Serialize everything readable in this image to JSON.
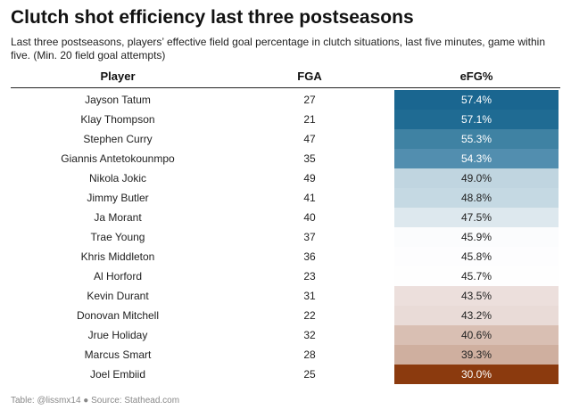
{
  "title": "Clutch shot efficiency last three postseasons",
  "subtitle": "Last three postseasons, players’ effective field goal percentage in clutch situations, last five minutes, game within five. (Min. 20 field goal attempts)",
  "footer": "Table: @lissmx14 ● Source: Stathead.com",
  "colors": {
    "high": "#19668f",
    "mid": "#ffffff",
    "low": "#8b3a0e"
  },
  "chart_data": {
    "type": "table",
    "columns": [
      "Player",
      "FGA",
      "eFG%"
    ],
    "rows": [
      {
        "player": "Jayson Tatum",
        "fga": "27",
        "efg": "57.4%",
        "value": 57.4,
        "bg": "#1a6690",
        "fg": "#ffffff"
      },
      {
        "player": "Klay Thompson",
        "fga": "21",
        "efg": "57.1%",
        "value": 57.1,
        "bg": "#1f6b93",
        "fg": "#ffffff"
      },
      {
        "player": "Stephen Curry",
        "fga": "47",
        "efg": "55.3%",
        "value": 55.3,
        "bg": "#3f82a3",
        "fg": "#ffffff"
      },
      {
        "player": "Giannis Antetokounmpo",
        "fga": "35",
        "efg": "54.3%",
        "value": 54.3,
        "bg": "#528eaf",
        "fg": "#ffffff"
      },
      {
        "player": "Nikola Jokic",
        "fga": "49",
        "efg": "49.0%",
        "value": 49.0,
        "bg": "#c0d5e0",
        "fg": "#222222"
      },
      {
        "player": "Jimmy Butler",
        "fga": "41",
        "efg": "48.8%",
        "value": 48.8,
        "bg": "#c5d9e3",
        "fg": "#222222"
      },
      {
        "player": "Ja Morant",
        "fga": "40",
        "efg": "47.5%",
        "value": 47.5,
        "bg": "#dde8ee",
        "fg": "#222222"
      },
      {
        "player": "Trae Young",
        "fga": "37",
        "efg": "45.9%",
        "value": 45.9,
        "bg": "#fbfcfd",
        "fg": "#222222"
      },
      {
        "player": "Khris Middleton",
        "fga": "36",
        "efg": "45.8%",
        "value": 45.8,
        "bg": "#fdfdfe",
        "fg": "#222222"
      },
      {
        "player": "Al Horford",
        "fga": "23",
        "efg": "45.7%",
        "value": 45.7,
        "bg": "#fefefe",
        "fg": "#222222"
      },
      {
        "player": "Kevin Durant",
        "fga": "31",
        "efg": "43.5%",
        "value": 43.5,
        "bg": "#ecdfdc",
        "fg": "#222222"
      },
      {
        "player": "Donovan Mitchell",
        "fga": "22",
        "efg": "43.2%",
        "value": 43.2,
        "bg": "#e9dbd7",
        "fg": "#222222"
      },
      {
        "player": "Jrue Holiday",
        "fga": "32",
        "efg": "40.6%",
        "value": 40.6,
        "bg": "#d9bfb3",
        "fg": "#222222"
      },
      {
        "player": "Marcus Smart",
        "fga": "28",
        "efg": "39.3%",
        "value": 39.3,
        "bg": "#cfaf9f",
        "fg": "#222222"
      },
      {
        "player": "Joel Embiid",
        "fga": "25",
        "efg": "30.0%",
        "value": 30.0,
        "bg": "#8b3a0e",
        "fg": "#ffffff"
      }
    ]
  }
}
